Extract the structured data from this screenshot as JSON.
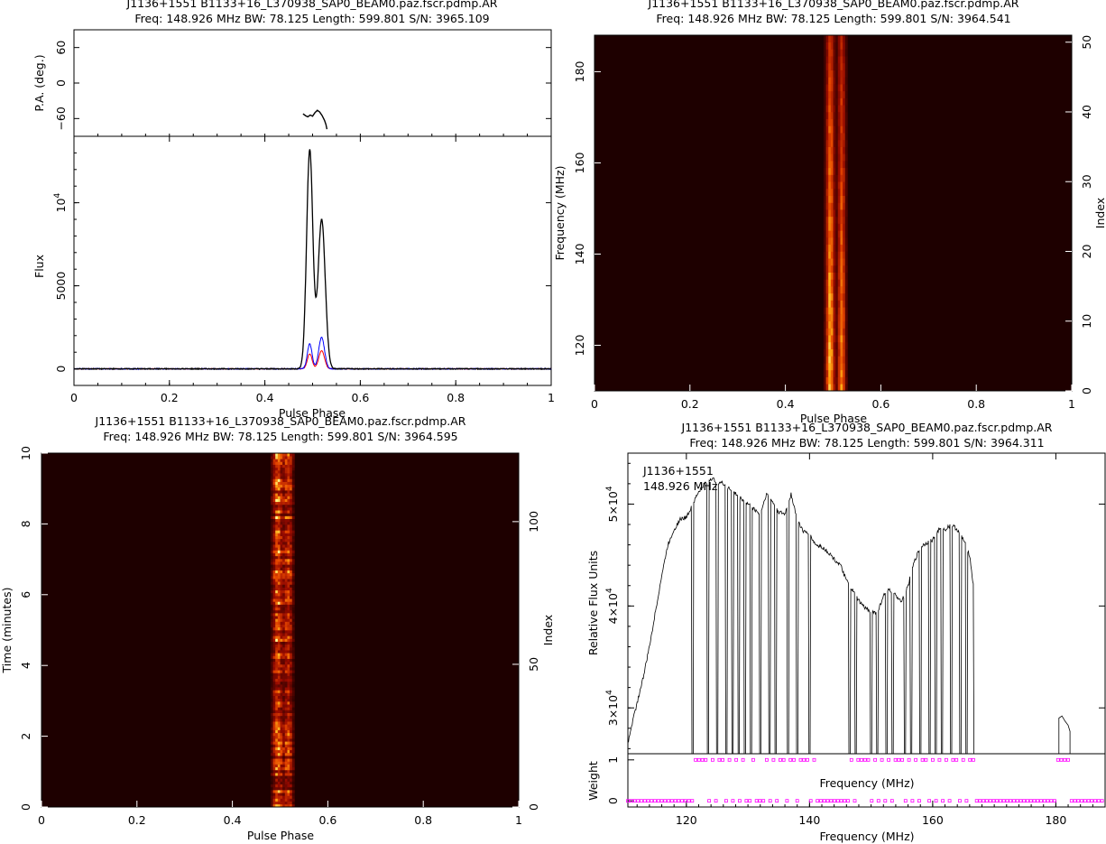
{
  "source_file": "J1136+1551  B1133+16_L370938_SAP0_BEAM0.paz.fscr.pdmp.AR",
  "colors": {
    "profile_I": "#000000",
    "profile_L": "#0000ff",
    "profile_V": "#ff0000",
    "weights": "#ff00ff",
    "heatmap_bg": "#1e0000",
    "heatmap_peak": "#ffff80"
  },
  "chart_data": [
    {
      "id": "profile",
      "type": "line",
      "title": "J1136+1551  B1133+16_L370938_SAP0_BEAM0.paz.fscr.pdmp.AR",
      "subtitle": "Freq: 148.926 MHz BW: 78.125 Length: 599.801 S/N: 3965.109",
      "xlabel": "Pulse Phase",
      "ylabel": "Flux",
      "xlim": [
        0,
        1
      ],
      "ylim": [
        -1000,
        14000
      ],
      "xticks": [
        "0",
        "0.2",
        "0.4",
        "0.6",
        "0.8",
        "1"
      ],
      "yticks": [
        {
          "label": "0",
          "value": 0
        },
        {
          "label": "5000",
          "value": 5000
        },
        {
          "label": "10",
          "sup": "4",
          "value": 10000
        }
      ],
      "components": {
        "I": [
          {
            "center": 0.494,
            "height": 13200,
            "width": 0.0065
          },
          {
            "center": 0.519,
            "height": 9000,
            "width": 0.0075
          }
        ],
        "L": [
          {
            "center": 0.494,
            "height": 1500,
            "width": 0.005
          },
          {
            "center": 0.519,
            "height": 1900,
            "width": 0.006
          }
        ],
        "V": [
          {
            "center": 0.494,
            "height": 900,
            "width": 0.005
          },
          {
            "center": 0.519,
            "height": 1100,
            "width": 0.006
          }
        ]
      },
      "pa_panel": {
        "ylabel": "P.A. (deg.)",
        "ylim": [
          -90,
          90
        ],
        "yticks": [
          {
            "label": "60",
            "value": 60
          },
          {
            "label": "0",
            "value": 0
          },
          {
            "label": "−60",
            "value": -60
          }
        ],
        "x": [
          0.48,
          0.485,
          0.49,
          0.495,
          0.5,
          0.505,
          0.51,
          0.515,
          0.52,
          0.525,
          0.528,
          0.53
        ],
        "y": [
          -52,
          -55,
          -57,
          -54,
          -56,
          -50,
          -46,
          -49,
          -55,
          -63,
          -70,
          -78
        ]
      }
    },
    {
      "id": "freq-phase",
      "type": "heatmap",
      "title": "J1136+1551  B1133+16_L370938_SAP0_BEAM0.paz.fscr.pdmp.AR",
      "subtitle": "Freq: 148.926 MHz BW: 78.125 Length: 599.801 S/N: 3964.541",
      "xlabel": "Pulse Phase",
      "ylabel": "Frequency (MHz)",
      "ylabel_right": "Index",
      "xlim": [
        0,
        1
      ],
      "ylim": [
        110,
        188
      ],
      "ylim_right": [
        0,
        51
      ],
      "xticks": [
        "0",
        "0.2",
        "0.4",
        "0.6",
        "0.8",
        "1"
      ],
      "yticks": [
        {
          "label": "120",
          "value": 120
        },
        {
          "label": "140",
          "value": 140
        },
        {
          "label": "160",
          "value": 160
        },
        {
          "label": "180",
          "value": 180
        }
      ],
      "yticks_right": [
        {
          "label": "0",
          "value": 0
        },
        {
          "label": "10",
          "value": 10
        },
        {
          "label": "20",
          "value": 20
        },
        {
          "label": "30",
          "value": 30
        },
        {
          "label": "40",
          "value": 40
        },
        {
          "label": "50",
          "value": 50
        }
      ],
      "pulse_phase_range": [
        0.48,
        0.53
      ]
    },
    {
      "id": "time-phase",
      "type": "heatmap",
      "title": "J1136+1551  B1133+16_L370938_SAP0_BEAM0.paz.fscr.pdmp.AR",
      "subtitle": "Freq: 148.926 MHz BW: 78.125 Length: 599.801 S/N: 3964.595",
      "xlabel": "Pulse Phase",
      "ylabel": "Time (minutes)",
      "ylabel_right": "Index",
      "xlim": [
        0,
        1
      ],
      "ylim": [
        0,
        10
      ],
      "ylim_right": [
        0,
        124
      ],
      "xticks": [
        "0",
        "0.2",
        "0.4",
        "0.6",
        "0.8",
        "1"
      ],
      "yticks": [
        {
          "label": "0",
          "value": 0
        },
        {
          "label": "2",
          "value": 2
        },
        {
          "label": "4",
          "value": 4
        },
        {
          "label": "6",
          "value": 6
        },
        {
          "label": "8",
          "value": 8
        },
        {
          "label": "10",
          "value": 10
        }
      ],
      "yticks_right": [
        {
          "label": "0",
          "value": 0
        },
        {
          "label": "50",
          "value": 50
        },
        {
          "label": "100",
          "value": 100
        }
      ],
      "pulse_phase_range": [
        0.48,
        0.53
      ]
    },
    {
      "id": "bandpass",
      "type": "line",
      "title": "J1136+1551  B1133+16_L370938_SAP0_BEAM0.paz.fscr.pdmp.AR",
      "subtitle": "Freq: 148.926 MHz BW: 78.125 Length: 599.801 S/N: 3964.311",
      "annotation": [
        "J1136+1551",
        "148.926 MHz"
      ],
      "xlabel": "Frequency (MHz)",
      "ylabel": "Relative Flux Units",
      "xlim": [
        110.5,
        188
      ],
      "ylim": [
        25500,
        55000
      ],
      "xticks": [
        {
          "label": "120",
          "value": 120
        },
        {
          "label": "140",
          "value": 140
        },
        {
          "label": "160",
          "value": 160
        },
        {
          "label": "180",
          "value": 180
        }
      ],
      "yticks": [
        {
          "label": "3×10",
          "sup": "4",
          "value": 30000
        },
        {
          "label": "4×10",
          "sup": "4",
          "value": 40000
        },
        {
          "label": "5×10",
          "sup": "4",
          "value": 50000
        }
      ],
      "series": [
        {
          "x": [
            110.5,
            111,
            112,
            113,
            114,
            115,
            116,
            117,
            118,
            119,
            120,
            121,
            122,
            123,
            124,
            125,
            126,
            127,
            128,
            129,
            130,
            131,
            132,
            133,
            134,
            135,
            136,
            137,
            138,
            139,
            140,
            141,
            142,
            143,
            144,
            145,
            146,
            147,
            148,
            149,
            150,
            151,
            152,
            153,
            154,
            155,
            156,
            157,
            158,
            159,
            160,
            161,
            162,
            163,
            164,
            165,
            166,
            167
          ],
          "y": [
            26500,
            28000,
            30500,
            33000,
            36000,
            39500,
            43000,
            46000,
            47500,
            48500,
            48700,
            50000,
            51200,
            52000,
            52500,
            52200,
            52000,
            51500,
            51000,
            50500,
            50000,
            49500,
            49000,
            51000,
            50200,
            49200,
            49000,
            51000,
            48500,
            47300,
            47000,
            46000,
            45800,
            45300,
            44600,
            44000,
            42500,
            41500,
            40500,
            39800,
            39500,
            39300,
            41000,
            41600,
            41000,
            40500,
            42000,
            44300,
            45800,
            46200,
            46500,
            47500,
            47500,
            48000,
            47500,
            46500,
            45000,
            40000
          ],
          "flagged_channels_MHz": [
            121,
            123.5,
            125,
            126.5,
            127.5,
            128.5,
            129.5,
            130.5,
            132,
            133.5,
            134.5,
            136.5,
            138,
            140,
            146.5,
            147.5,
            150,
            151,
            152.5,
            153.5,
            155.5,
            156.5,
            158,
            159.5,
            160.5,
            161.5,
            163,
            164.5,
            165.5
          ],
          "extra_segment": {
            "x": [
              180.5,
              181,
              181.5,
              182,
              182.3
            ],
            "y": [
              29000,
              29200,
              28700,
              28300,
              27700
            ]
          }
        }
      ],
      "weights_panel": {
        "ylabel": "Weight",
        "xlabel": "Frequency (MHz)",
        "yticks": [
          {
            "label": "0",
            "value": 0
          },
          {
            "label": "1",
            "value": 1
          }
        ],
        "ylim": [
          -0.15,
          1.15
        ],
        "zero_ranges_MHz": [
          [
            110.5,
            120.8
          ],
          [
            131,
            133
          ],
          [
            141,
            146
          ],
          [
            167,
            180
          ],
          [
            182.5,
            188
          ]
        ],
        "one_ranges_MHz": [
          [
            120.8,
            131
          ],
          [
            133,
            141
          ],
          [
            146,
            167
          ],
          [
            180,
            182.5
          ]
        ]
      }
    }
  ]
}
